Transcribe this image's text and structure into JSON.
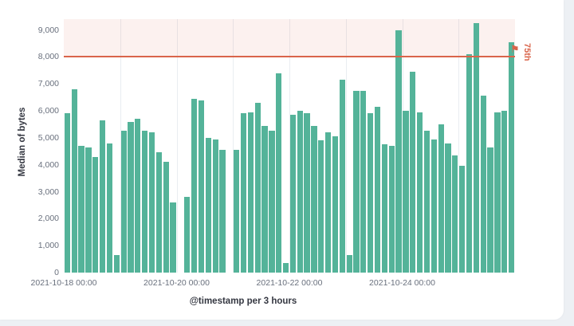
{
  "chart_data": {
    "type": "bar",
    "title": "",
    "xlabel": "@timestamp per 3 hours",
    "ylabel": "Median of bytes",
    "bar_color": "#54b399",
    "grid": "vertical-only",
    "x_start": "2021-10-18 00:00",
    "interval_hours": 3,
    "x_tick_labels": [
      "2021-10-18 00:00",
      "2021-10-20 00:00",
      "2021-10-22 00:00",
      "2021-10-24 00:00"
    ],
    "x_tick_slots": [
      0,
      16,
      32,
      48
    ],
    "y_ticks": [
      0,
      1000,
      2000,
      3000,
      4000,
      5000,
      6000,
      7000,
      8000,
      9000
    ],
    "ylim": [
      0,
      9400
    ],
    "day_gridline_slots": [
      8,
      16,
      24,
      32,
      40,
      48,
      56
    ],
    "values": [
      5900,
      6800,
      4700,
      4650,
      4300,
      5650,
      4800,
      650,
      5250,
      5600,
      5700,
      5250,
      5200,
      4450,
      4100,
      2600,
      null,
      2800,
      6450,
      6400,
      5000,
      4950,
      4550,
      null,
      4550,
      5900,
      5950,
      6300,
      5450,
      5250,
      7400,
      350,
      5850,
      6000,
      5900,
      5450,
      4900,
      5200,
      5050,
      7150,
      650,
      6750,
      6750,
      5900,
      6150,
      4750,
      4700,
      9000,
      6000,
      7450,
      5950,
      5250,
      4950,
      5500,
      4800,
      4350,
      3950,
      8100,
      9250,
      6550,
      4650,
      5950,
      6000,
      8550
    ],
    "threshold": {
      "value": 8000,
      "label": "75th",
      "color": "#d9644a",
      "band_color": "rgba(217, 100, 74, 0.09)"
    }
  }
}
